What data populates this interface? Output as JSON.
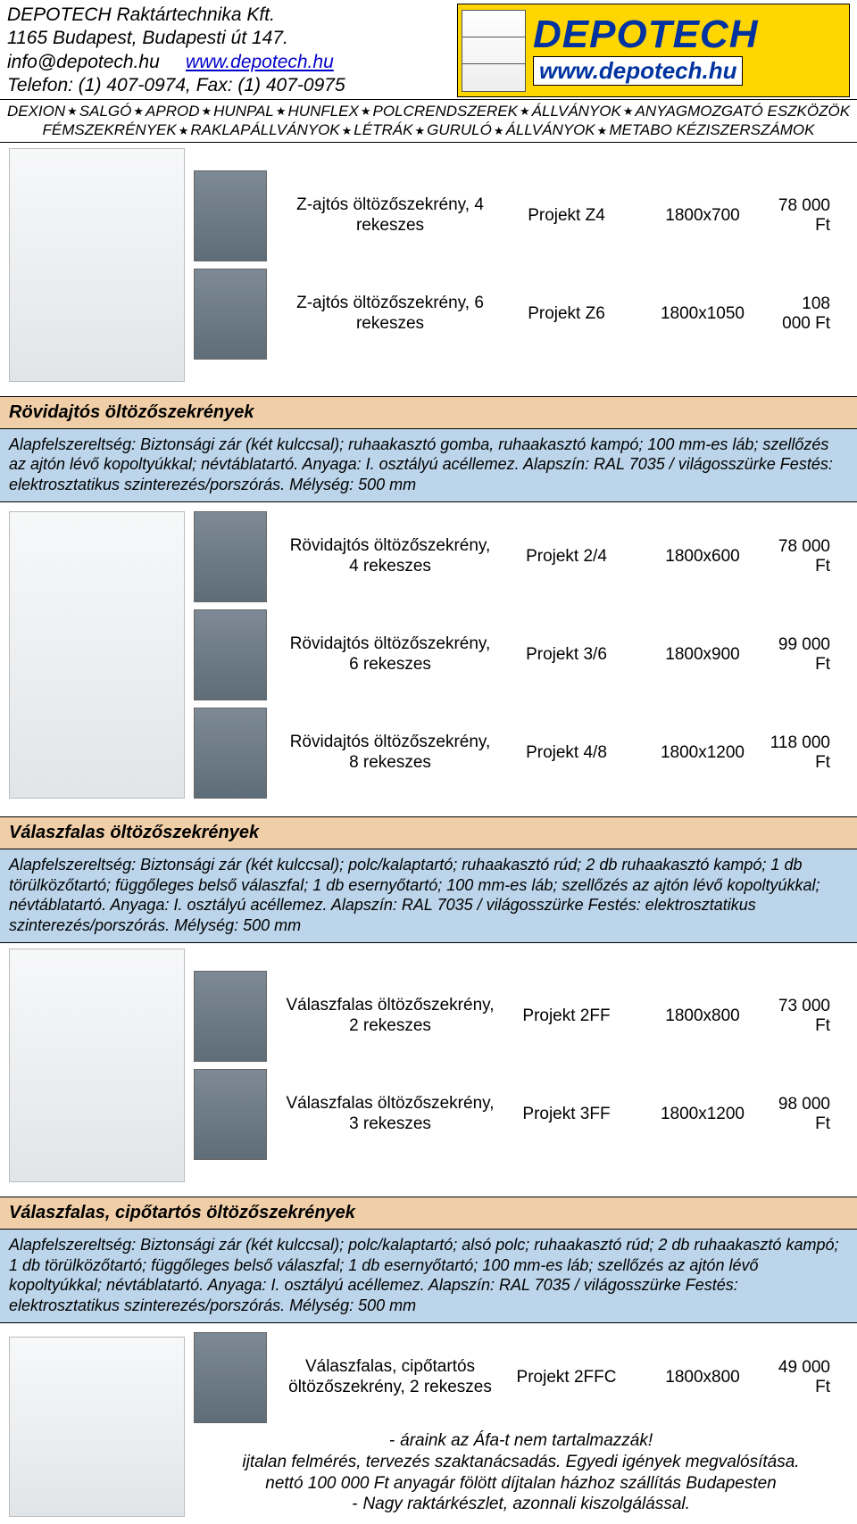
{
  "header": {
    "company": "DEPOTECH Raktártechnika Kft.",
    "address": "1165 Budapest, Budapesti út 147.",
    "email": "info@depotech.hu",
    "website_label": "www.depotech.hu",
    "phone_line": "Telefon: (1) 407-0974, Fax: (1) 407-0975",
    "logo_name": "DEPOTECH",
    "logo_url": "www.depotech.hu"
  },
  "nav": {
    "line1": [
      "DEXION",
      "SALGÓ",
      "APROD",
      "HUNPAL",
      "HUNFLEX",
      "POLCRENDSZEREK",
      "ÁLLVÁNYOK",
      "ANYAGMOZGATÓ ESZKÖZÖK"
    ],
    "line2": [
      "FÉMSZEKRÉNYEK",
      "RAKLAPÁLLVÁNYOK",
      "LÉTRÁK",
      "GURULÓ",
      "ÁLLVÁNYOK",
      "METABO KÉZISZERSZÁMOK"
    ]
  },
  "group_z": {
    "rows": [
      {
        "desc": "Z-ajtós öltözőszekrény, 4 rekeszes",
        "code": "Projekt Z4",
        "dim": "1800x700",
        "price": "78 000 Ft"
      },
      {
        "desc": "Z-ajtós öltözőszekrény, 6 rekeszes",
        "code": "Projekt Z6",
        "dim": "1800x1050",
        "price": "108 000 Ft"
      }
    ]
  },
  "section_rovid": {
    "title": "Rövidajtós öltözőszekrények",
    "desc": "Alapfelszereltség: Biztonsági zár (két kulccsal); ruhaakasztó gomba, ruhaakasztó kampó; 100 mm-es láb; szellőzés az ajtón lévő kopoltyúkkal; névtáblatartó. Anyaga: I. osztályú acéllemez. Alapszín: RAL 7035 / világosszürke Festés: elektrosztatikus szinterezés/porszórás. Mélység: 500 mm",
    "rows": [
      {
        "desc": "Rövidajtós öltözőszekrény, 4 rekeszes",
        "code": "Projekt 2/4",
        "dim": "1800x600",
        "price": "78 000 Ft"
      },
      {
        "desc": "Rövidajtós öltözőszekrény, 6 rekeszes",
        "code": "Projekt 3/6",
        "dim": "1800x900",
        "price": "99 000 Ft"
      },
      {
        "desc": "Rövidajtós öltözőszekrény, 8 rekeszes",
        "code": "Projekt 4/8",
        "dim": "1800x1200",
        "price": "118 000 Ft"
      }
    ]
  },
  "section_valasz": {
    "title": "Válaszfalas öltözőszekrények",
    "desc": "Alapfelszereltség: Biztonsági zár (két kulccsal); polc/kalaptartó; ruhaakasztó rúd; 2 db ruhaakasztó kampó; 1 db törülközőtartó; függőleges belső válaszfal; 1 db esernyőtartó; 100 mm-es láb; szellőzés az ajtón lévő kopoltyúkkal; névtáblatartó. Anyaga: I. osztályú acéllemez. Alapszín: RAL 7035 / világosszürke Festés: elektrosztatikus szinterezés/porszórás. Mélység: 500 mm",
    "rows": [
      {
        "desc": "Válaszfalas öltözőszekrény, 2 rekeszes",
        "code": "Projekt 2FF",
        "dim": "1800x800",
        "price": "73 000 Ft"
      },
      {
        "desc": "Válaszfalas öltözőszekrény, 3 rekeszes",
        "code": "Projekt 3FF",
        "dim": "1800x1200",
        "price": "98 000 Ft"
      }
    ]
  },
  "section_cipo": {
    "title": "Válaszfalas, cipőtartós öltözőszekrények",
    "desc": "Alapfelszereltség: Biztonsági zár (két kulccsal); polc/kalaptartó; alsó polc; ruhaakasztó rúd; 2 db ruhaakasztó kampó; 1 db törülközőtartó; függőleges belső válaszfal; 1 db esernyőtartó; 100 mm-es láb; szellőzés az ajtón lévő kopoltyúkkal; névtáblatartó. Anyaga: I. osztályú acéllemez. Alapszín: RAL 7035 / világosszürke Festés: elektrosztatikus szinterezés/porszórás. Mélység: 500 mm",
    "rows": [
      {
        "desc": "Válaszfalas, cipőtartós öltözőszekrény, 2 rekeszes",
        "code": "Projekt 2FFC",
        "dim": "1800x800",
        "price": "49 000 Ft"
      }
    ]
  },
  "footer": {
    "l1": "áraink az Áfa-t nem tartalmazzák!",
    "l2": "ijtalan felmérés, tervezés szaktanácsadás. Egyedi igények megvalósítása.",
    "l3": "nettó 100 000 Ft anyagár fölött díjtalan házhoz szállítás Budapesten",
    "l4": "Nagy raktárkészlet, azonnali kiszolgálással."
  },
  "style": {
    "title_bg": "#f0cfa8",
    "desc_bg": "#bcd5ea",
    "logo_bg": "#ffd502",
    "logo_text_color": "#0033a0"
  }
}
